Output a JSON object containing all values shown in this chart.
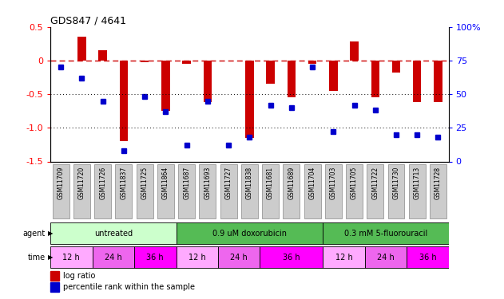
{
  "title": "GDS847 / 4641",
  "samples": [
    "GSM11709",
    "GSM11720",
    "GSM11726",
    "GSM11837",
    "GSM11725",
    "GSM11864",
    "GSM11687",
    "GSM11693",
    "GSM11727",
    "GSM11838",
    "GSM11681",
    "GSM11689",
    "GSM11704",
    "GSM11703",
    "GSM11705",
    "GSM11722",
    "GSM11730",
    "GSM11713",
    "GSM11728"
  ],
  "log_ratios": [
    0.0,
    0.35,
    0.15,
    -1.2,
    -0.02,
    -0.75,
    -0.05,
    -0.62,
    0.0,
    -1.15,
    -0.35,
    -0.55,
    -0.05,
    -0.45,
    0.28,
    -0.55,
    -0.18,
    -0.62,
    -0.62
  ],
  "percentile_ranks": [
    70,
    62,
    45,
    8,
    48,
    37,
    12,
    45,
    12,
    18,
    42,
    40,
    70,
    22,
    42,
    38,
    20,
    20,
    18
  ],
  "agent_groups": [
    {
      "label": "untreated",
      "start": 0,
      "end": 6,
      "color": "#ccffcc"
    },
    {
      "label": "0.9 uM doxorubicin",
      "start": 6,
      "end": 13,
      "color": "#55bb55"
    },
    {
      "label": "0.3 mM 5-fluorouracil",
      "start": 13,
      "end": 19,
      "color": "#55bb55"
    }
  ],
  "time_groups": [
    {
      "label": "12 h",
      "start": 0,
      "end": 2,
      "color": "#ffaaff"
    },
    {
      "label": "24 h",
      "start": 2,
      "end": 4,
      "color": "#ee66ee"
    },
    {
      "label": "36 h",
      "start": 4,
      "end": 6,
      "color": "#ff00ff"
    },
    {
      "label": "12 h",
      "start": 6,
      "end": 8,
      "color": "#ffaaff"
    },
    {
      "label": "24 h",
      "start": 8,
      "end": 10,
      "color": "#ee66ee"
    },
    {
      "label": "36 h",
      "start": 10,
      "end": 13,
      "color": "#ff00ff"
    },
    {
      "label": "12 h",
      "start": 13,
      "end": 15,
      "color": "#ffaaff"
    },
    {
      "label": "24 h",
      "start": 15,
      "end": 17,
      "color": "#ee66ee"
    },
    {
      "label": "36 h",
      "start": 17,
      "end": 19,
      "color": "#ff00ff"
    }
  ],
  "bar_color": "#cc0000",
  "dot_color": "#0000cc",
  "ylim_left": [
    -1.5,
    0.5
  ],
  "ylim_right": [
    0,
    100
  ],
  "yticks_left": [
    -1.5,
    -1.0,
    -0.5,
    0.0,
    0.5
  ],
  "yticks_right": [
    0,
    25,
    50,
    75,
    100
  ],
  "yticklabels_right": [
    "0",
    "25",
    "50",
    "75",
    "100%"
  ],
  "hlines": [
    -1.0,
    -0.5
  ],
  "hline_zero_color": "#cc0000",
  "hline_color": "black",
  "bar_width": 0.4,
  "dot_size": 4
}
